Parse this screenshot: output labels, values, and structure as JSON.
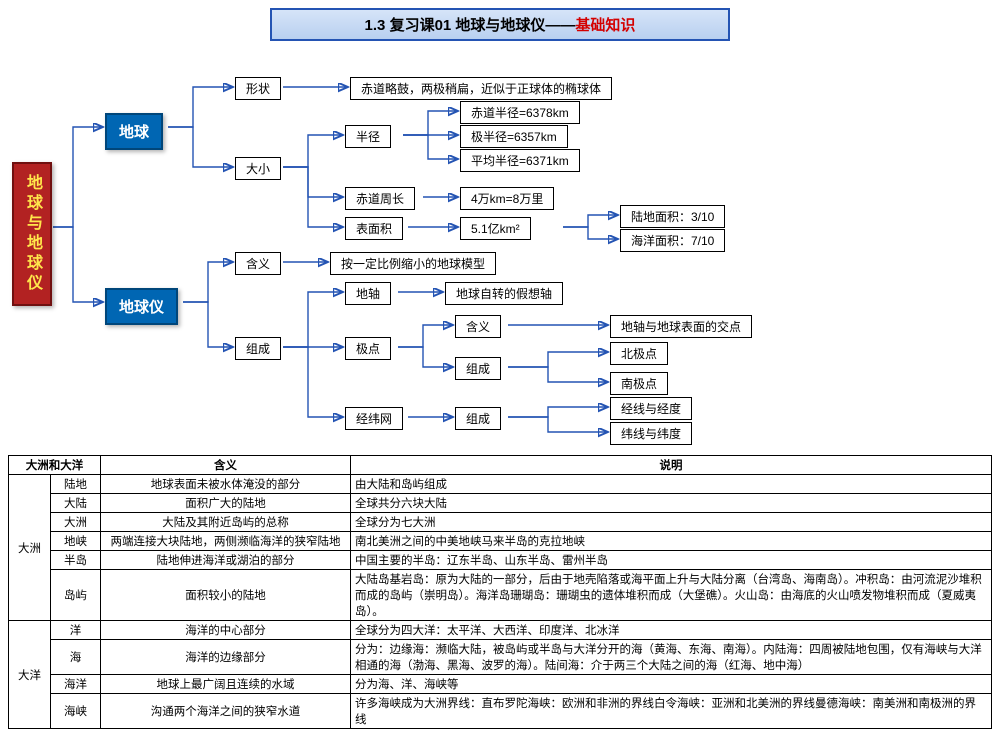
{
  "title": {
    "prefix": "1.3 复习课01 地球与地球仪——",
    "suffix": "基础知识"
  },
  "root": "地球与地球仪",
  "l1_earth": "地球",
  "l1_globe": "地球仪",
  "shape": "形状",
  "shape_desc": "赤道略鼓，两极稍扁，近似于正球体的椭球体",
  "size": "大小",
  "radius": "半径",
  "r_eq": "赤道半径=6378km",
  "r_pol": "极半径=6357km",
  "r_avg": "平均半径=6371km",
  "circ": "赤道周长",
  "circ_v": "4万km=8万里",
  "area": "表面积",
  "area_v": "5.1亿km²",
  "land": "陆地面积：3/10",
  "ocean": "海洋面积：7/10",
  "meaning": "含义",
  "meaning_v": "按一定比例缩小的地球模型",
  "comp": "组成",
  "axis": "地轴",
  "axis_v": "地球自转的假想轴",
  "pole": "极点",
  "pole_m": "含义",
  "pole_m_v": "地轴与地球表面的交点",
  "pole_c": "组成",
  "np": "北极点",
  "sp": "南极点",
  "grid": "经纬网",
  "grid_c": "组成",
  "lon": "经线与经度",
  "lat": "纬线与纬度",
  "tbl": {
    "h1": "大洲和大洋",
    "h2": "含义",
    "h3": "说明",
    "g1": "大洲",
    "g2": "大洋",
    "rows": [
      [
        "陆地",
        "地球表面未被水体淹没的部分",
        "由大陆和岛屿组成"
      ],
      [
        "大陆",
        "面积广大的陆地",
        "全球共分六块大陆"
      ],
      [
        "大洲",
        "大陆及其附近岛屿的总称",
        "全球分为七大洲"
      ],
      [
        "地峡",
        "两端连接大块陆地，两侧濒临海洋的狭窄陆地",
        "南北美洲之间的中美地峡马来半岛的克拉地峡"
      ],
      [
        "半岛",
        "陆地伸进海洋或湖泊的部分",
        "中国主要的半岛：辽东半岛、山东半岛、雷州半岛"
      ],
      [
        "岛屿",
        "面积较小的陆地",
        "大陆岛基岩岛：原为大陆的一部分，后由于地壳陷落或海平面上升与大陆分离（台湾岛、海南岛）。冲积岛：由河流泥沙堆积而成的岛屿（崇明岛）。海洋岛珊瑚岛：珊瑚虫的遗体堆积而成（大堡礁）。火山岛：由海底的火山喷发物堆积而成（夏威夷岛）。"
      ],
      [
        "洋",
        "海洋的中心部分",
        "全球分为四大洋：太平洋、大西洋、印度洋、北冰洋"
      ],
      [
        "海",
        "海洋的边缘部分",
        "分为：边缘海：濒临大陆，被岛屿或半岛与大洋分开的海（黄海、东海、南海）。内陆海：四周被陆地包围，仅有海峡与大洋相通的海（渤海、黑海、波罗的海）。陆间海：介于两三个大陆之间的海（红海、地中海）"
      ],
      [
        "海洋",
        "地球上最广阔且连续的水域",
        "分为海、洋、海峡等"
      ],
      [
        "海峡",
        "沟通两个海洋之间的狭窄水道",
        "许多海峡成为大洲界线：直布罗陀海峡：欧洲和非洲的界线白令海峡：亚洲和北美洲的界线曼德海峡：南美洲和南极洲的界线"
      ]
    ]
  }
}
